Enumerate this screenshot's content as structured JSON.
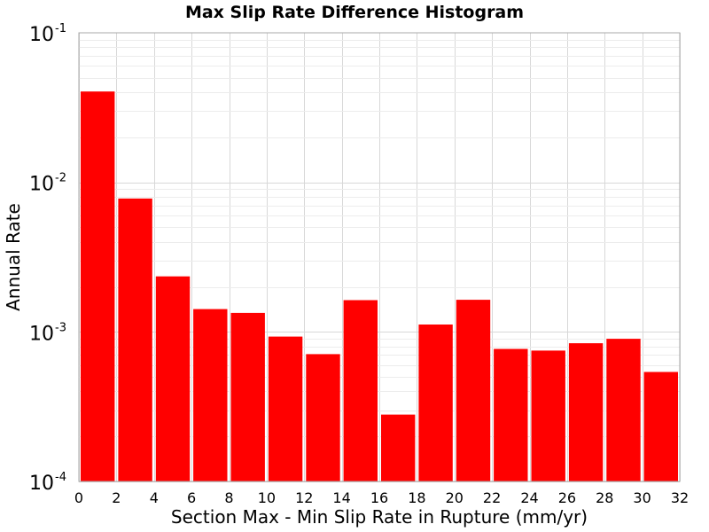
{
  "chart_data": {
    "type": "bar",
    "title": "Max Slip Rate Difference Histogram",
    "xlabel": "Section Max - Min Slip Rate in Rupture (mm/yr)",
    "ylabel": "Annual Rate",
    "yscale": "log",
    "ylim": [
      0.0001,
      0.1
    ],
    "xlim": [
      0,
      32
    ],
    "bin_width": 2,
    "x_ticks": [
      "0",
      "2",
      "4",
      "6",
      "8",
      "10",
      "12",
      "14",
      "16",
      "18",
      "20",
      "22",
      "24",
      "26",
      "28",
      "30",
      "32"
    ],
    "y_ticks": [
      {
        "base": "10",
        "exp": "-4",
        "value": 0.0001
      },
      {
        "base": "10",
        "exp": "-3",
        "value": 0.001
      },
      {
        "base": "10",
        "exp": "-2",
        "value": 0.01
      },
      {
        "base": "10",
        "exp": "-1",
        "value": 0.1
      }
    ],
    "x": [
      1,
      3,
      5,
      7,
      9,
      11,
      13,
      15,
      17,
      19,
      21,
      23,
      25,
      27,
      29,
      31
    ],
    "values": [
      0.0405,
      0.0078,
      0.00235,
      0.00142,
      0.00134,
      0.00093,
      0.00071,
      0.00163,
      0.00028,
      0.00112,
      0.00164,
      0.00077,
      0.00075,
      0.00084,
      0.0009,
      0.00054
    ],
    "bar_color": "#ff0000",
    "grid": true,
    "legend": "none"
  }
}
